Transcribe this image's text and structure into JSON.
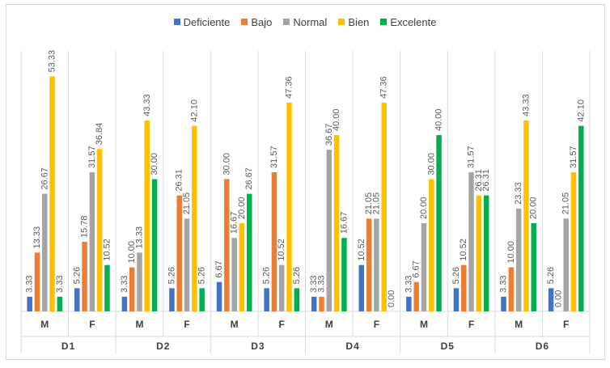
{
  "chart_data": {
    "type": "bar",
    "title": "",
    "xlabel": "",
    "ylabel": "",
    "ylim": [
      0,
      60
    ],
    "groups": [
      "D1",
      "D2",
      "D3",
      "D4",
      "D5",
      "D6"
    ],
    "subcategories": [
      "M",
      "F"
    ],
    "series": [
      {
        "name": "Deficiente",
        "color": "#4472C4",
        "values": [
          3.33,
          5.26,
          3.33,
          5.26,
          6.67,
          5.26,
          3.33,
          10.52,
          3.33,
          5.26,
          3.33,
          5.26
        ],
        "labels": [
          "3.33",
          "5.26",
          "3.33",
          "5.26",
          "6.67",
          "5.26",
          "3.33",
          "10.52",
          "3.33",
          "5.26",
          "3.33",
          "5.26"
        ]
      },
      {
        "name": "Bajo",
        "color": "#ED7D31",
        "values": [
          13.33,
          15.78,
          10.0,
          26.31,
          30.0,
          31.57,
          3.33,
          21.05,
          6.67,
          10.52,
          10.0,
          0.0
        ],
        "labels": [
          "13.33",
          "15.78",
          "10.00",
          "26.31",
          "30.00",
          "31.57",
          "3.33",
          "21.05",
          "6.67",
          "10.52",
          "10.00",
          "0.00"
        ]
      },
      {
        "name": "Normal",
        "color": "#A5A5A5",
        "values": [
          26.67,
          31.57,
          13.33,
          21.05,
          16.67,
          10.52,
          36.67,
          21.05,
          20.0,
          31.57,
          23.33,
          21.05
        ],
        "labels": [
          "26.67",
          "31.57",
          "13.33",
          "21.05",
          "16.67",
          "10.52",
          "36.67",
          "21.05",
          "20.00",
          "31.57",
          "23.33",
          "21.05"
        ]
      },
      {
        "name": "Bien",
        "color": "#FFC000",
        "values": [
          53.33,
          36.84,
          43.33,
          42.1,
          20.0,
          47.36,
          40.0,
          47.36,
          30.0,
          26.31,
          43.33,
          31.57
        ],
        "labels": [
          "53.33",
          "36.84",
          "43.33",
          "42.10",
          "20.00",
          "47.36",
          "40.00",
          "47.36",
          "30.00",
          "26.31",
          "43.33",
          "31.57"
        ]
      },
      {
        "name": "Excelente",
        "color": "#00B050",
        "values": [
          3.33,
          10.52,
          30.0,
          5.26,
          26.67,
          5.26,
          16.67,
          0.0,
          40.0,
          26.31,
          20.0,
          42.1
        ],
        "labels": [
          "3.33",
          "10.52",
          "30.00",
          "5.26",
          "26.67",
          "5.26",
          "16.67",
          "0.00",
          "40.00",
          "26.31",
          "20.00",
          "42.10"
        ]
      }
    ],
    "legend_position": "top",
    "grid": false
  }
}
